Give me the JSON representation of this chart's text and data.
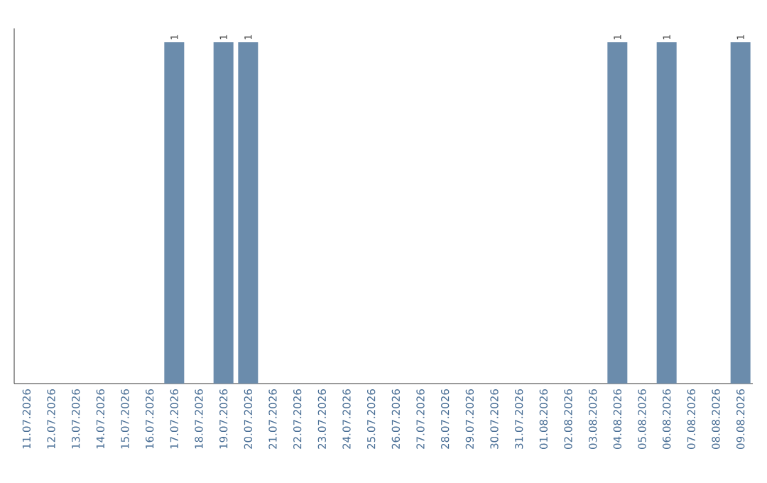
{
  "chart_data": {
    "type": "bar",
    "categories": [
      "11.07.2026",
      "12.07.2026",
      "13.07.2026",
      "14.07.2026",
      "15.07.2026",
      "16.07.2026",
      "17.07.2026",
      "18.07.2026",
      "19.07.2026",
      "20.07.2026",
      "21.07.2026",
      "22.07.2026",
      "23.07.2026",
      "24.07.2026",
      "25.07.2026",
      "26.07.2026",
      "27.07.2026",
      "28.07.2026",
      "29.07.2026",
      "30.07.2026",
      "31.07.2026",
      "01.08.2026",
      "02.08.2026",
      "03.08.2026",
      "04.08.2026",
      "05.08.2026",
      "06.08.2026",
      "07.08.2026",
      "08.08.2026",
      "09.08.2026"
    ],
    "values": [
      0,
      0,
      0,
      0,
      0,
      0,
      1,
      0,
      1,
      1,
      0,
      0,
      0,
      0,
      0,
      0,
      0,
      0,
      0,
      0,
      0,
      0,
      0,
      0,
      1,
      0,
      1,
      0,
      0,
      1
    ],
    "value_labels": [
      null,
      null,
      null,
      null,
      null,
      null,
      "1",
      null,
      "1",
      "1",
      null,
      null,
      null,
      null,
      null,
      null,
      null,
      null,
      null,
      null,
      null,
      null,
      null,
      null,
      "1",
      null,
      "1",
      null,
      null,
      "1"
    ],
    "color": "#6b8cac",
    "tick_labels": "x"
  }
}
